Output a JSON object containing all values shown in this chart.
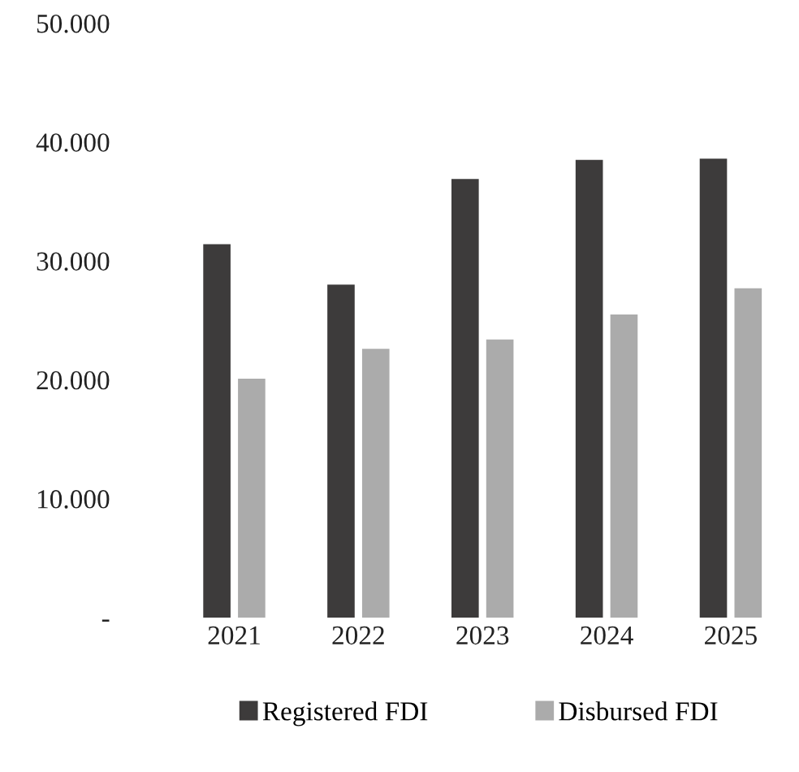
{
  "chart_data": {
    "type": "bar",
    "categories": [
      "2021",
      "2022",
      "2023",
      "2024",
      "2025"
    ],
    "series": [
      {
        "name": "Registered FDI",
        "color": "#3d3b3b",
        "values": [
          31400,
          28000,
          36900,
          38500,
          38600
        ]
      },
      {
        "name": "Disbursed FDI",
        "color": "#ababab",
        "values": [
          20100,
          22600,
          23400,
          25500,
          27700
        ]
      }
    ],
    "ylim": [
      0,
      50000
    ],
    "yticks": [
      {
        "value": 0,
        "label": "-"
      },
      {
        "value": 10000,
        "label": "10.000"
      },
      {
        "value": 20000,
        "label": "20.000"
      },
      {
        "value": 30000,
        "label": "30.000"
      },
      {
        "value": 40000,
        "label": "40.000"
      },
      {
        "value": 50000,
        "label": "50.000"
      }
    ],
    "grid": false,
    "legend": "bottom"
  }
}
